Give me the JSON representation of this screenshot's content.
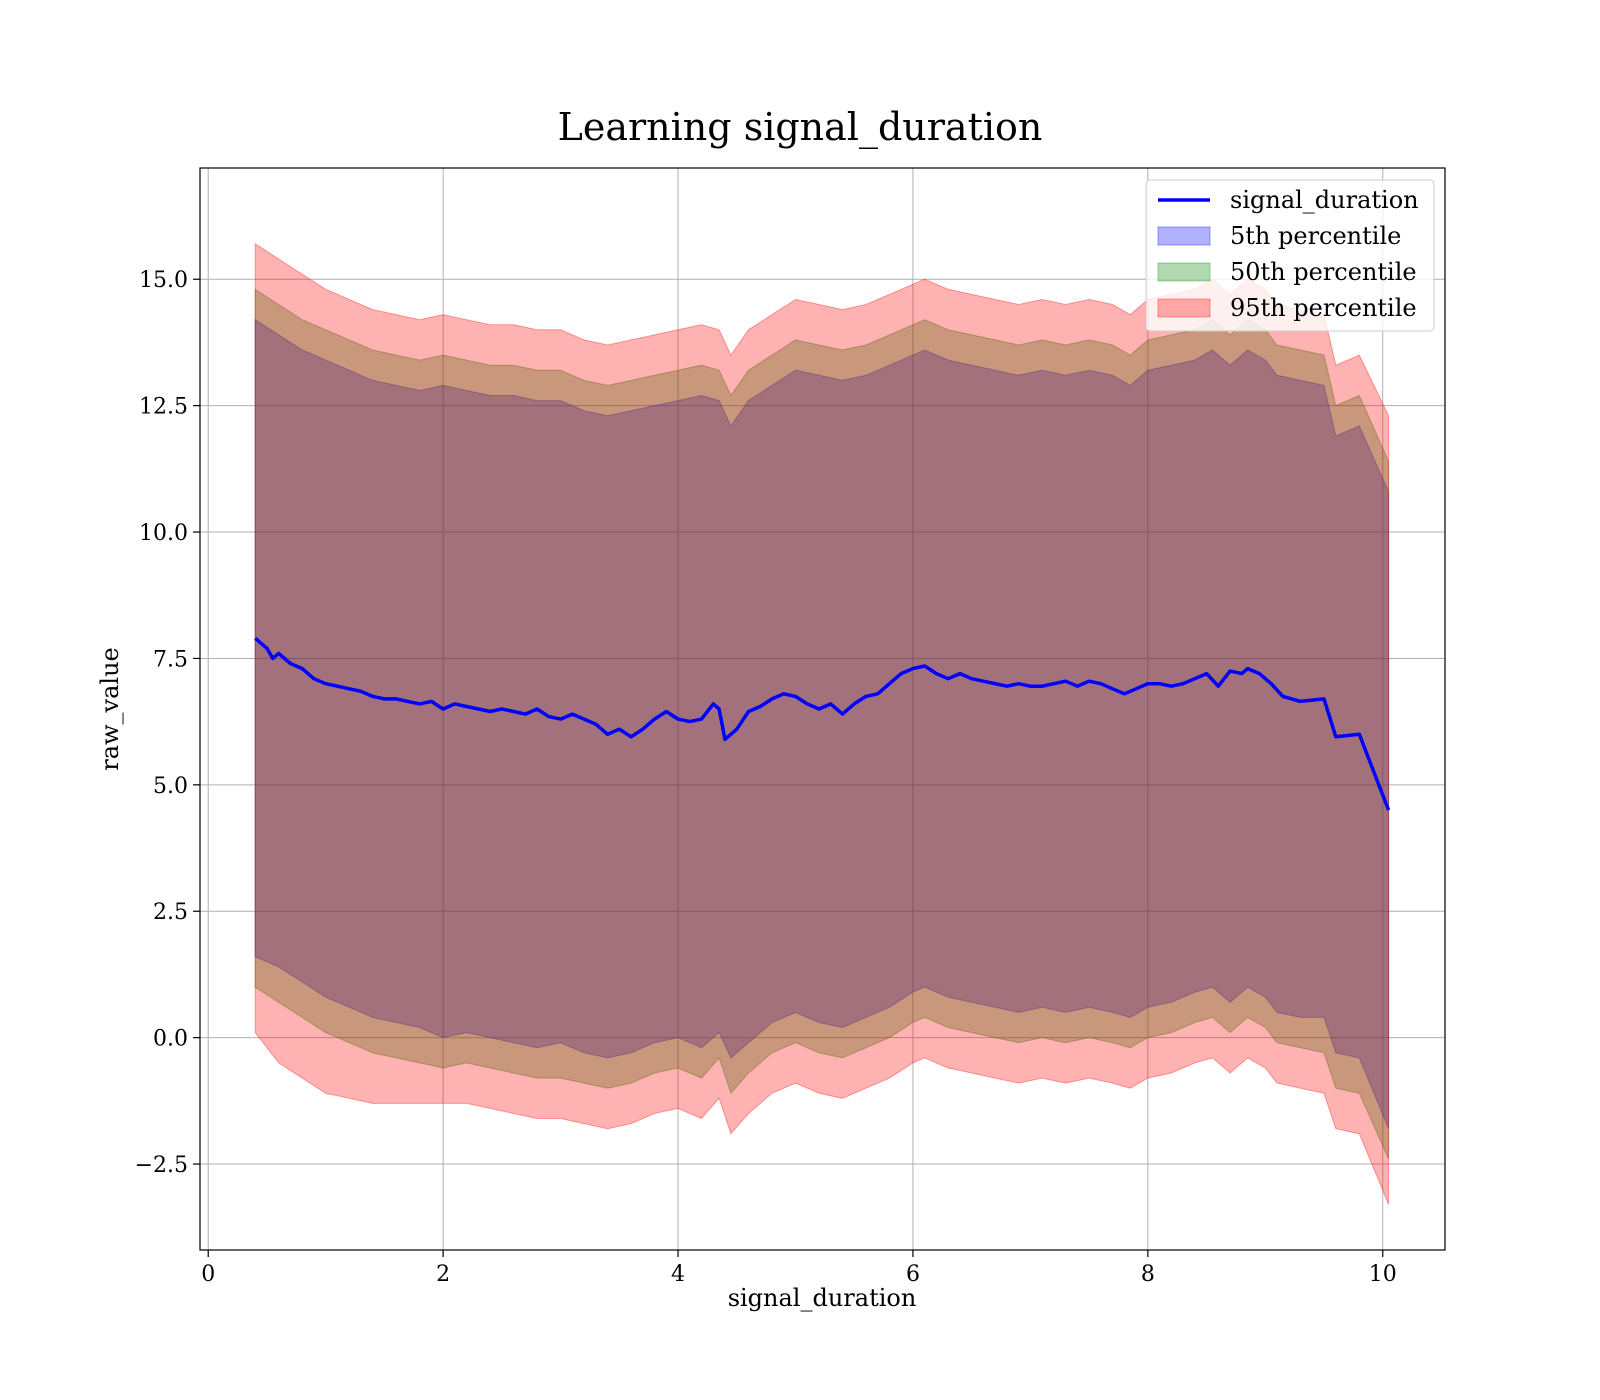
{
  "chart_data": {
    "type": "line",
    "title": "Learning signal_duration",
    "xlabel": "signal_duration",
    "ylabel": "raw_value",
    "xlim": [
      -0.07,
      10.53
    ],
    "ylim": [
      -4.2,
      17.2
    ],
    "xticks": [
      0,
      2,
      4,
      6,
      8,
      10
    ],
    "xtick_labels": [
      "0",
      "2",
      "4",
      "6",
      "8",
      "10"
    ],
    "yticks": [
      -2.5,
      0.0,
      2.5,
      5.0,
      7.5,
      10.0,
      12.5,
      15.0
    ],
    "ytick_labels": [
      "−2.5",
      "0.0",
      "2.5",
      "5.0",
      "7.5",
      "10.0",
      "12.5",
      "15.0"
    ],
    "grid": true,
    "legend_position": "top-right",
    "line": {
      "name": "signal_duration",
      "color": "#0000ff",
      "x": [
        0.4,
        0.45,
        0.5,
        0.55,
        0.6,
        0.7,
        0.8,
        0.9,
        1.0,
        1.1,
        1.2,
        1.3,
        1.4,
        1.5,
        1.6,
        1.7,
        1.8,
        1.9,
        2.0,
        2.1,
        2.2,
        2.3,
        2.4,
        2.5,
        2.6,
        2.7,
        2.8,
        2.9,
        3.0,
        3.1,
        3.2,
        3.3,
        3.4,
        3.5,
        3.6,
        3.7,
        3.8,
        3.9,
        4.0,
        4.1,
        4.2,
        4.3,
        4.35,
        4.4,
        4.5,
        4.6,
        4.7,
        4.8,
        4.9,
        5.0,
        5.1,
        5.2,
        5.3,
        5.4,
        5.5,
        5.6,
        5.7,
        5.8,
        5.9,
        6.0,
        6.1,
        6.2,
        6.3,
        6.4,
        6.5,
        6.6,
        6.7,
        6.8,
        6.9,
        7.0,
        7.1,
        7.2,
        7.3,
        7.4,
        7.5,
        7.6,
        7.7,
        7.8,
        7.9,
        8.0,
        8.1,
        8.2,
        8.3,
        8.4,
        8.5,
        8.6,
        8.7,
        8.8,
        8.85,
        8.95,
        9.05,
        9.15,
        9.3,
        9.5,
        9.6,
        9.8,
        10.05
      ],
      "y": [
        7.9,
        7.8,
        7.7,
        7.5,
        7.6,
        7.4,
        7.3,
        7.1,
        7.0,
        6.95,
        6.9,
        6.85,
        6.75,
        6.7,
        6.7,
        6.65,
        6.6,
        6.65,
        6.5,
        6.6,
        6.55,
        6.5,
        6.45,
        6.5,
        6.45,
        6.4,
        6.5,
        6.35,
        6.3,
        6.4,
        6.3,
        6.2,
        6.0,
        6.1,
        5.95,
        6.1,
        6.3,
        6.45,
        6.3,
        6.25,
        6.3,
        6.6,
        6.5,
        5.9,
        6.1,
        6.45,
        6.55,
        6.7,
        6.8,
        6.75,
        6.6,
        6.5,
        6.6,
        6.4,
        6.6,
        6.75,
        6.8,
        7.0,
        7.2,
        7.3,
        7.35,
        7.2,
        7.1,
        7.2,
        7.1,
        7.05,
        7.0,
        6.95,
        7.0,
        6.95,
        6.95,
        7.0,
        7.05,
        6.95,
        7.05,
        7.0,
        6.9,
        6.8,
        6.9,
        7.0,
        7.0,
        6.95,
        7.0,
        7.1,
        7.2,
        6.95,
        7.25,
        7.2,
        7.3,
        7.2,
        7.0,
        6.75,
        6.65,
        6.7,
        5.95,
        6.0,
        4.5
      ]
    },
    "bands": [
      {
        "name": "5th percentile",
        "color": "#0000ff",
        "opacity": 0.3,
        "x": [
          0.4,
          0.6,
          0.8,
          1.0,
          1.2,
          1.4,
          1.6,
          1.8,
          2.0,
          2.2,
          2.4,
          2.6,
          2.8,
          3.0,
          3.2,
          3.4,
          3.6,
          3.8,
          4.0,
          4.2,
          4.35,
          4.45,
          4.6,
          4.8,
          5.0,
          5.2,
          5.4,
          5.6,
          5.8,
          6.0,
          6.1,
          6.3,
          6.5,
          6.7,
          6.9,
          7.1,
          7.3,
          7.5,
          7.7,
          7.85,
          8.0,
          8.2,
          8.4,
          8.55,
          8.7,
          8.85,
          9.0,
          9.1,
          9.3,
          9.5,
          9.6,
          9.8,
          10.05
        ],
        "lower": [
          1.6,
          1.4,
          1.1,
          0.8,
          0.6,
          0.4,
          0.3,
          0.2,
          0.0,
          0.1,
          0.0,
          -0.1,
          -0.2,
          -0.1,
          -0.3,
          -0.4,
          -0.3,
          -0.1,
          0.0,
          -0.2,
          0.1,
          -0.4,
          -0.1,
          0.3,
          0.5,
          0.3,
          0.2,
          0.4,
          0.6,
          0.9,
          1.0,
          0.8,
          0.7,
          0.6,
          0.5,
          0.6,
          0.5,
          0.6,
          0.5,
          0.4,
          0.6,
          0.7,
          0.9,
          1.0,
          0.7,
          1.0,
          0.8,
          0.5,
          0.4,
          0.4,
          -0.3,
          -0.4,
          -1.8
        ],
        "upper": [
          14.2,
          13.9,
          13.6,
          13.4,
          13.2,
          13.0,
          12.9,
          12.8,
          12.9,
          12.8,
          12.7,
          12.7,
          12.6,
          12.6,
          12.4,
          12.3,
          12.4,
          12.5,
          12.6,
          12.7,
          12.6,
          12.1,
          12.6,
          12.9,
          13.2,
          13.1,
          13.0,
          13.1,
          13.3,
          13.5,
          13.6,
          13.4,
          13.3,
          13.2,
          13.1,
          13.2,
          13.1,
          13.2,
          13.1,
          12.9,
          13.2,
          13.3,
          13.4,
          13.6,
          13.3,
          13.6,
          13.4,
          13.1,
          13.0,
          12.9,
          11.9,
          12.1,
          10.8
        ]
      },
      {
        "name": "50th percentile",
        "color": "#008000",
        "opacity": 0.3,
        "x": [
          0.4,
          0.6,
          0.8,
          1.0,
          1.2,
          1.4,
          1.6,
          1.8,
          2.0,
          2.2,
          2.4,
          2.6,
          2.8,
          3.0,
          3.2,
          3.4,
          3.6,
          3.8,
          4.0,
          4.2,
          4.35,
          4.45,
          4.6,
          4.8,
          5.0,
          5.2,
          5.4,
          5.6,
          5.8,
          6.0,
          6.1,
          6.3,
          6.5,
          6.7,
          6.9,
          7.1,
          7.3,
          7.5,
          7.7,
          7.85,
          8.0,
          8.2,
          8.4,
          8.55,
          8.7,
          8.85,
          9.0,
          9.1,
          9.3,
          9.5,
          9.6,
          9.8,
          10.05
        ],
        "lower": [
          1.0,
          0.7,
          0.4,
          0.1,
          -0.1,
          -0.3,
          -0.4,
          -0.5,
          -0.6,
          -0.5,
          -0.6,
          -0.7,
          -0.8,
          -0.8,
          -0.9,
          -1.0,
          -0.9,
          -0.7,
          -0.6,
          -0.8,
          -0.4,
          -1.1,
          -0.7,
          -0.3,
          -0.1,
          -0.3,
          -0.4,
          -0.2,
          0.0,
          0.3,
          0.4,
          0.2,
          0.1,
          0.0,
          -0.1,
          0.0,
          -0.1,
          0.0,
          -0.1,
          -0.2,
          0.0,
          0.1,
          0.3,
          0.4,
          0.1,
          0.4,
          0.2,
          -0.1,
          -0.2,
          -0.3,
          -1.0,
          -1.1,
          -2.4
        ],
        "upper": [
          14.8,
          14.5,
          14.2,
          14.0,
          13.8,
          13.6,
          13.5,
          13.4,
          13.5,
          13.4,
          13.3,
          13.3,
          13.2,
          13.2,
          13.0,
          12.9,
          13.0,
          13.1,
          13.2,
          13.3,
          13.2,
          12.7,
          13.2,
          13.5,
          13.8,
          13.7,
          13.6,
          13.7,
          13.9,
          14.1,
          14.2,
          14.0,
          13.9,
          13.8,
          13.7,
          13.8,
          13.7,
          13.8,
          13.7,
          13.5,
          13.8,
          13.9,
          14.0,
          14.2,
          13.9,
          14.2,
          14.0,
          13.7,
          13.6,
          13.5,
          12.5,
          12.7,
          11.4
        ]
      },
      {
        "name": "95th percentile",
        "color": "#ff0000",
        "opacity": 0.3,
        "x": [
          0.4,
          0.6,
          0.8,
          1.0,
          1.2,
          1.4,
          1.6,
          1.8,
          2.0,
          2.2,
          2.4,
          2.6,
          2.8,
          3.0,
          3.2,
          3.4,
          3.6,
          3.8,
          4.0,
          4.2,
          4.35,
          4.45,
          4.6,
          4.8,
          5.0,
          5.2,
          5.4,
          5.6,
          5.8,
          6.0,
          6.1,
          6.3,
          6.5,
          6.7,
          6.9,
          7.1,
          7.3,
          7.5,
          7.7,
          7.85,
          8.0,
          8.2,
          8.4,
          8.55,
          8.7,
          8.85,
          9.0,
          9.1,
          9.3,
          9.5,
          9.6,
          9.8,
          10.05
        ],
        "lower": [
          0.1,
          -0.5,
          -0.8,
          -1.1,
          -1.2,
          -1.3,
          -1.3,
          -1.3,
          -1.3,
          -1.3,
          -1.4,
          -1.5,
          -1.6,
          -1.6,
          -1.7,
          -1.8,
          -1.7,
          -1.5,
          -1.4,
          -1.6,
          -1.2,
          -1.9,
          -1.5,
          -1.1,
          -0.9,
          -1.1,
          -1.2,
          -1.0,
          -0.8,
          -0.5,
          -0.4,
          -0.6,
          -0.7,
          -0.8,
          -0.9,
          -0.8,
          -0.9,
          -0.8,
          -0.9,
          -1.0,
          -0.8,
          -0.7,
          -0.5,
          -0.4,
          -0.7,
          -0.4,
          -0.6,
          -0.9,
          -1.0,
          -1.1,
          -1.8,
          -1.9,
          -3.3
        ],
        "upper": [
          15.7,
          15.4,
          15.1,
          14.8,
          14.6,
          14.4,
          14.3,
          14.2,
          14.3,
          14.2,
          14.1,
          14.1,
          14.0,
          14.0,
          13.8,
          13.7,
          13.8,
          13.9,
          14.0,
          14.1,
          14.0,
          13.5,
          14.0,
          14.3,
          14.6,
          14.5,
          14.4,
          14.5,
          14.7,
          14.9,
          15.0,
          14.8,
          14.7,
          14.6,
          14.5,
          14.6,
          14.5,
          14.6,
          14.5,
          14.3,
          14.6,
          14.7,
          14.8,
          15.0,
          14.7,
          15.0,
          14.8,
          14.5,
          14.4,
          14.3,
          13.3,
          13.5,
          12.3
        ]
      }
    ]
  }
}
